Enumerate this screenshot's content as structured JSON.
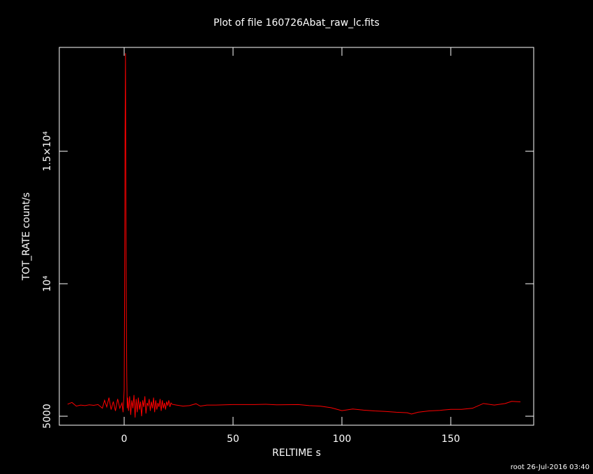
{
  "chart_data": {
    "type": "line",
    "title": "Plot of file 160726Abat_raw_lc.fits",
    "xlabel": "RELTIME  s",
    "ylabel": "TOT_RATE  count/s",
    "footer": "root 26-Jul-2016 03:40",
    "color": "#ff0000",
    "x": [
      -26,
      -24,
      -22,
      -20,
      -18,
      -16,
      -14,
      -12,
      -10,
      -9,
      -8,
      -7,
      -6,
      -5,
      -4,
      -3,
      -2,
      -1,
      -0.5,
      0,
      0.2,
      0.4,
      0.6,
      0.8,
      1.0,
      1.2,
      1.4,
      1.6,
      2,
      2.5,
      3,
      3.5,
      4,
      4.5,
      5,
      5.5,
      6,
      6.5,
      7,
      7.5,
      8,
      8.5,
      9,
      9.5,
      10,
      10.5,
      11,
      11.5,
      12,
      12.5,
      13,
      13.5,
      14,
      14.5,
      15,
      15.5,
      16,
      16.5,
      17,
      17.5,
      18,
      18.5,
      19,
      19.5,
      20,
      20.5,
      21,
      21.5,
      22,
      24,
      27,
      30,
      33,
      35,
      38,
      42,
      50,
      60,
      65,
      70,
      80,
      85,
      90,
      95,
      100,
      105,
      110,
      115,
      120,
      125,
      130,
      132,
      135,
      140,
      145,
      150,
      155,
      160,
      165,
      170,
      175,
      178,
      182
    ],
    "values": [
      5450,
      5520,
      5380,
      5420,
      5400,
      5430,
      5410,
      5440,
      5300,
      5600,
      5350,
      5700,
      5250,
      5550,
      5200,
      5650,
      5300,
      5500,
      5150,
      6000,
      9700,
      15700,
      18700,
      13000,
      9000,
      6500,
      5300,
      5700,
      5200,
      5750,
      5050,
      5600,
      5300,
      5800,
      4950,
      5650,
      5150,
      5700,
      5250,
      5550,
      5000,
      5600,
      5350,
      5750,
      5100,
      5500,
      5400,
      5650,
      5200,
      5550,
      5300,
      5700,
      5150,
      5600,
      5250,
      5500,
      5350,
      5650,
      5200,
      5600,
      5300,
      5500,
      5250,
      5550,
      5400,
      5600,
      5350,
      5500,
      5450,
      5420,
      5380,
      5400,
      5470,
      5380,
      5420,
      5420,
      5440,
      5440,
      5450,
      5430,
      5440,
      5400,
      5380,
      5320,
      5210,
      5270,
      5230,
      5200,
      5180,
      5150,
      5130,
      5080,
      5150,
      5200,
      5220,
      5260,
      5260,
      5300,
      5480,
      5420,
      5480,
      5560,
      5540
    ],
    "xlim": [
      -29.8,
      188.1
    ],
    "ylim": [
      4660,
      18920
    ],
    "xticks": [
      0,
      50,
      100,
      150
    ],
    "yticks": [
      5000,
      {
        "value": 10000,
        "label": "10⁴"
      },
      {
        "value": 15000,
        "label": "1.5×10⁴"
      }
    ]
  }
}
